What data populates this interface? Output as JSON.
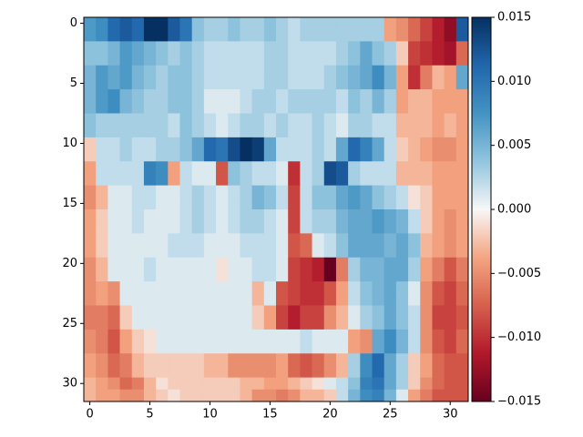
{
  "chart_data": {
    "type": "heatmap",
    "title": "",
    "xlabel": "",
    "ylabel": "",
    "colormap": "RdBu",
    "grid_size": [
      32,
      32
    ],
    "xlim": [
      -0.5,
      31.5
    ],
    "ylim": [
      31.5,
      -0.5
    ],
    "x_ticks": [
      0,
      5,
      10,
      15,
      20,
      25,
      30
    ],
    "y_ticks": [
      0,
      5,
      10,
      15,
      20,
      25,
      30
    ],
    "colorbar": {
      "min": -0.015,
      "max": 0.015,
      "ticks": [
        -0.015,
        -0.01,
        -0.005,
        0.0,
        0.005,
        0.01,
        0.015
      ],
      "tick_labels": [
        "−0.015",
        "−0.010",
        "−0.005",
        "0.000",
        "0.005",
        "0.010",
        "0.015"
      ]
    },
    "grid_points": [
      {
        "row": 0,
        "values": [
          0.007,
          0.008,
          0.011,
          0.012,
          0.011,
          0.015,
          0.015,
          0.012,
          0.01,
          0.004,
          0.003,
          0.003,
          0.004,
          0.003,
          0.003,
          0.004,
          0.003,
          0.002,
          0.003,
          0.003,
          0.003,
          0.003,
          0.003,
          0.003,
          0.003,
          -0.004,
          -0.005,
          -0.007,
          -0.009,
          -0.011,
          -0.013,
          0.012
        ]
      },
      {
        "row": 2,
        "values": [
          0.004,
          0.004,
          0.005,
          0.007,
          0.006,
          0.005,
          0.004,
          0.003,
          0.004,
          0.003,
          0.002,
          0.002,
          0.002,
          0.002,
          0.002,
          0.003,
          0.003,
          0.002,
          0.002,
          0.002,
          0.002,
          0.003,
          0.004,
          0.006,
          0.004,
          0.003,
          -0.002,
          -0.009,
          -0.01,
          -0.011,
          -0.012,
          -0.007
        ]
      },
      {
        "row": 4,
        "values": [
          0.005,
          0.007,
          0.006,
          0.007,
          0.005,
          0.004,
          0.003,
          0.004,
          0.004,
          0.003,
          0.002,
          0.002,
          0.002,
          0.002,
          0.002,
          0.003,
          0.003,
          0.002,
          0.002,
          0.002,
          0.003,
          0.004,
          0.005,
          0.006,
          0.008,
          0.005,
          -0.004,
          -0.01,
          -0.006,
          -0.003,
          -0.004,
          0.006
        ]
      },
      {
        "row": 6,
        "values": [
          0.005,
          0.007,
          0.008,
          0.005,
          0.004,
          0.003,
          0.003,
          0.004,
          0.004,
          0.003,
          0.001,
          0.001,
          0.001,
          0.002,
          0.003,
          0.003,
          0.002,
          0.003,
          0.003,
          0.003,
          0.003,
          0.002,
          0.004,
          0.003,
          0.005,
          0.003,
          -0.004,
          -0.003,
          -0.003,
          -0.004,
          -0.004,
          -0.004
        ]
      },
      {
        "row": 8,
        "values": [
          0.004,
          0.003,
          0.003,
          0.003,
          0.003,
          0.003,
          0.003,
          0.002,
          0.004,
          0.003,
          0.002,
          0.001,
          0.002,
          0.003,
          0.003,
          0.002,
          0.003,
          0.002,
          0.002,
          0.003,
          0.002,
          0.001,
          0.003,
          0.003,
          0.002,
          0.002,
          -0.003,
          -0.003,
          -0.003,
          -0.004,
          -0.003,
          -0.004
        ]
      },
      {
        "row": 10,
        "values": [
          -0.002,
          0.002,
          0.002,
          0.003,
          0.002,
          0.002,
          0.003,
          0.003,
          0.004,
          0.006,
          0.011,
          0.01,
          0.013,
          0.015,
          0.014,
          0.006,
          0.002,
          0.002,
          0.002,
          0.003,
          0.002,
          0.006,
          0.011,
          0.009,
          0.006,
          0.002,
          -0.002,
          -0.003,
          -0.004,
          -0.005,
          -0.005,
          -0.004
        ]
      },
      {
        "row": 12,
        "values": [
          -0.004,
          0.002,
          0.002,
          0.002,
          0.002,
          0.009,
          0.008,
          -0.004,
          0.002,
          0.001,
          0.001,
          -0.008,
          0.004,
          0.003,
          0.002,
          0.002,
          0.001,
          -0.01,
          0.002,
          0.003,
          0.013,
          0.012,
          0.003,
          0.002,
          0.002,
          0.002,
          -0.003,
          -0.003,
          -0.003,
          -0.004,
          -0.004,
          -0.004
        ]
      },
      {
        "row": 14,
        "values": [
          -0.005,
          -0.003,
          0.001,
          0.001,
          0.002,
          0.002,
          0.001,
          0.001,
          0.002,
          0.003,
          0.002,
          0.001,
          0.002,
          0.003,
          0.005,
          0.004,
          0.002,
          -0.009,
          0.002,
          0.004,
          0.004,
          0.006,
          0.007,
          0.006,
          0.004,
          0.003,
          0.002,
          -0.001,
          -0.002,
          -0.004,
          -0.004,
          -0.004
        ]
      },
      {
        "row": 16,
        "values": [
          -0.004,
          -0.002,
          0.001,
          0.001,
          0.002,
          0.001,
          0.001,
          0.001,
          0.002,
          0.003,
          0.002,
          0.001,
          0.002,
          0.003,
          0.003,
          0.002,
          0.001,
          -0.009,
          0.002,
          0.003,
          0.003,
          0.005,
          0.006,
          0.006,
          0.007,
          0.006,
          0.005,
          0.002,
          -0.002,
          -0.004,
          -0.005,
          -0.004
        ]
      },
      {
        "row": 18,
        "values": [
          -0.004,
          -0.002,
          0.001,
          0.001,
          0.001,
          0.001,
          0.001,
          0.002,
          0.002,
          0.002,
          0.001,
          0.001,
          0.001,
          0.002,
          0.002,
          0.002,
          0.001,
          -0.008,
          -0.007,
          0.001,
          0.002,
          0.004,
          0.006,
          0.006,
          0.006,
          0.005,
          0.006,
          0.004,
          -0.003,
          -0.004,
          -0.005,
          -0.004
        ]
      },
      {
        "row": 20,
        "values": [
          -0.005,
          -0.003,
          0.001,
          0.001,
          0.001,
          0.002,
          0.001,
          0.001,
          0.001,
          0.001,
          0.001,
          -0.001,
          0.001,
          0.001,
          0.002,
          0.002,
          0.001,
          -0.009,
          -0.01,
          -0.011,
          -0.015,
          -0.006,
          0.003,
          0.005,
          0.005,
          0.006,
          0.006,
          0.003,
          -0.004,
          -0.006,
          -0.008,
          -0.006
        ]
      },
      {
        "row": 22,
        "values": [
          -0.005,
          -0.004,
          -0.005,
          0.001,
          0.001,
          0.001,
          0.001,
          0.001,
          0.001,
          0.001,
          0.001,
          0.001,
          0.001,
          0.001,
          -0.003,
          0.001,
          -0.008,
          -0.009,
          -0.01,
          -0.01,
          -0.008,
          -0.004,
          0.002,
          0.004,
          0.005,
          0.006,
          0.004,
          0.001,
          -0.005,
          -0.008,
          -0.009,
          -0.007
        ]
      },
      {
        "row": 24,
        "values": [
          -0.006,
          -0.006,
          -0.007,
          -0.002,
          0.001,
          0.001,
          0.001,
          0.001,
          0.001,
          0.001,
          0.001,
          0.001,
          0.001,
          0.001,
          -0.002,
          -0.004,
          -0.009,
          -0.011,
          -0.009,
          -0.009,
          -0.005,
          -0.003,
          0.001,
          0.003,
          0.004,
          0.006,
          0.004,
          0.002,
          -0.005,
          -0.009,
          -0.009,
          -0.008
        ]
      },
      {
        "row": 26,
        "values": [
          -0.005,
          -0.006,
          -0.008,
          -0.004,
          -0.002,
          -0.001,
          0.001,
          0.001,
          0.001,
          0.001,
          0.001,
          0.001,
          0.001,
          0.001,
          0.001,
          0.001,
          0.001,
          0.001,
          0.002,
          0.001,
          0.001,
          0.001,
          -0.004,
          -0.005,
          0.006,
          0.008,
          0.005,
          0.002,
          -0.005,
          -0.008,
          -0.009,
          -0.007
        ]
      },
      {
        "row": 28,
        "values": [
          -0.004,
          -0.005,
          -0.007,
          -0.006,
          -0.003,
          -0.002,
          -0.002,
          -0.002,
          -0.002,
          -0.002,
          -0.003,
          -0.003,
          -0.005,
          -0.005,
          -0.005,
          -0.005,
          -0.004,
          -0.007,
          -0.008,
          -0.007,
          -0.005,
          -0.003,
          0.003,
          0.008,
          0.011,
          0.006,
          0.003,
          -0.002,
          -0.004,
          -0.007,
          -0.008,
          -0.008
        ]
      },
      {
        "row": 30,
        "values": [
          -0.003,
          -0.004,
          -0.005,
          -0.007,
          -0.006,
          -0.003,
          -0.001,
          -0.002,
          -0.002,
          -0.002,
          -0.002,
          -0.002,
          -0.002,
          -0.003,
          -0.003,
          -0.004,
          -0.004,
          -0.003,
          -0.002,
          -0.001,
          0.001,
          0.002,
          0.004,
          0.009,
          0.01,
          0.006,
          0.003,
          -0.002,
          -0.005,
          -0.007,
          -0.008,
          -0.008
        ]
      },
      {
        "row": 31,
        "values": [
          -0.003,
          -0.004,
          -0.004,
          -0.005,
          -0.005,
          -0.003,
          -0.002,
          -0.001,
          -0.002,
          -0.002,
          -0.002,
          -0.002,
          -0.002,
          -0.003,
          -0.005,
          -0.005,
          -0.006,
          -0.005,
          -0.003,
          -0.003,
          -0.002,
          0.002,
          0.005,
          0.008,
          0.009,
          0.005,
          0.001,
          -0.004,
          -0.006,
          -0.008,
          -0.008,
          -0.008
        ]
      }
    ]
  }
}
